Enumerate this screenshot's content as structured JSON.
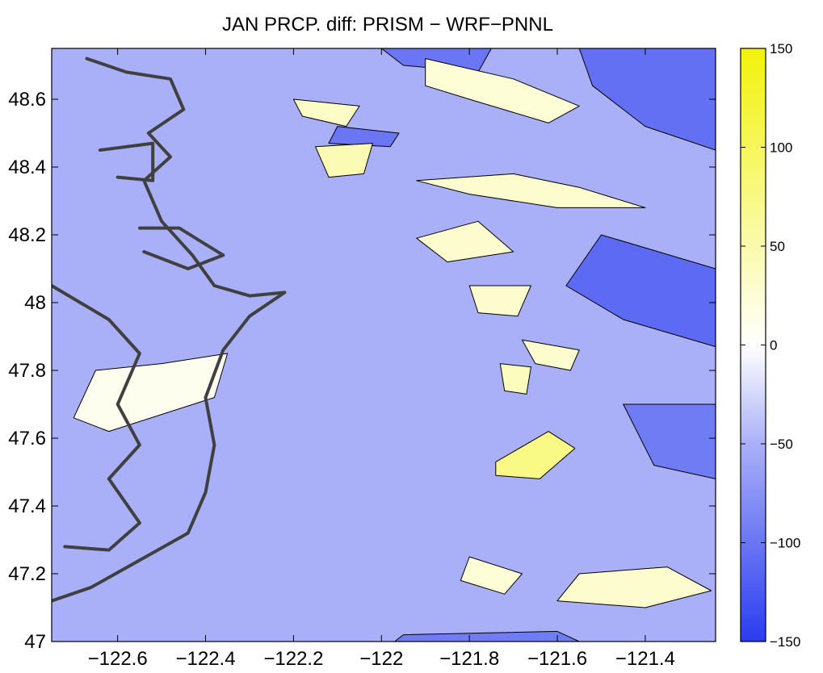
{
  "chart_data": {
    "type": "heatmap",
    "title": "JAN PRCP. diff: PRISM − WRF−PNNL",
    "xlabel": "",
    "ylabel": "",
    "xlim": [
      -122.75,
      -121.24
    ],
    "ylim": [
      47.0,
      48.75
    ],
    "xticks": [
      -122.6,
      -122.4,
      -122.2,
      -122.0,
      -121.8,
      -121.6,
      -121.4
    ],
    "xtick_labels": [
      "−122.6",
      "−122.4",
      "−122.2",
      "−122",
      "−121.8",
      "−121.6",
      "−121.4"
    ],
    "yticks": [
      47.0,
      47.2,
      47.4,
      47.6,
      47.8,
      48.0,
      48.2,
      48.4,
      48.6
    ],
    "ytick_labels": [
      "47",
      "47.2",
      "47.4",
      "47.6",
      "47.8",
      "48",
      "48.2",
      "48.4",
      "48.6"
    ],
    "colorbar": {
      "min": -150,
      "max": 150,
      "ticks": [
        150,
        100,
        50,
        0,
        -50,
        -100,
        -150
      ],
      "tick_labels": [
        "150",
        "100",
        "50",
        "0",
        "−50",
        "−100",
        "−150"
      ],
      "colors": {
        "-150": "#2a3cf0",
        "-50": "#aab0f8",
        "0": "#ffffff",
        "150": "#f2f20a"
      }
    },
    "contour_levels": [
      -125,
      -100,
      -75,
      -50,
      -25,
      0,
      25,
      50,
      75,
      100,
      125
    ],
    "regions": [
      {
        "value": -50,
        "polygon": [
          [
            -122.75,
            47.0
          ],
          [
            -121.24,
            47.0
          ],
          [
            -121.24,
            48.75
          ],
          [
            -122.75,
            48.75
          ]
        ]
      },
      {
        "value": -105,
        "polygon": [
          [
            -121.55,
            48.75
          ],
          [
            -121.24,
            48.75
          ],
          [
            -121.24,
            48.45
          ],
          [
            -121.4,
            48.52
          ],
          [
            -121.52,
            48.64
          ]
        ]
      },
      {
        "value": -110,
        "polygon": [
          [
            -121.5,
            48.2
          ],
          [
            -121.24,
            48.1
          ],
          [
            -121.24,
            47.87
          ],
          [
            -121.45,
            47.95
          ],
          [
            -121.58,
            48.05
          ]
        ]
      },
      {
        "value": -95,
        "polygon": [
          [
            -121.45,
            47.7
          ],
          [
            -121.24,
            47.7
          ],
          [
            -121.24,
            47.48
          ],
          [
            -121.38,
            47.52
          ]
        ]
      },
      {
        "value": -100,
        "polygon": [
          [
            -122.0,
            48.75
          ],
          [
            -121.75,
            48.75
          ],
          [
            -121.78,
            48.68
          ],
          [
            -121.95,
            48.7
          ]
        ]
      },
      {
        "value": -100,
        "polygon": [
          [
            -122.1,
            48.52
          ],
          [
            -121.96,
            48.5
          ],
          [
            -121.98,
            48.46
          ],
          [
            -122.12,
            48.47
          ]
        ]
      },
      {
        "value": -95,
        "polygon": [
          [
            -121.95,
            47.02
          ],
          [
            -121.6,
            47.03
          ],
          [
            -121.55,
            47.0
          ],
          [
            -121.97,
            47.0
          ]
        ]
      },
      {
        "value": 25,
        "polygon": [
          [
            -121.9,
            48.72
          ],
          [
            -121.7,
            48.66
          ],
          [
            -121.55,
            48.58
          ],
          [
            -121.62,
            48.53
          ],
          [
            -121.8,
            48.6
          ],
          [
            -121.9,
            48.64
          ]
        ]
      },
      {
        "value": 35,
        "polygon": [
          [
            -122.2,
            48.6
          ],
          [
            -122.05,
            48.58
          ],
          [
            -122.08,
            48.52
          ],
          [
            -122.18,
            48.55
          ]
        ]
      },
      {
        "value": 45,
        "polygon": [
          [
            -122.15,
            48.46
          ],
          [
            -122.02,
            48.47
          ],
          [
            -122.04,
            48.38
          ],
          [
            -122.12,
            48.37
          ]
        ]
      },
      {
        "value": 30,
        "polygon": [
          [
            -121.92,
            48.36
          ],
          [
            -121.7,
            48.38
          ],
          [
            -121.55,
            48.34
          ],
          [
            -121.4,
            48.28
          ],
          [
            -121.6,
            48.28
          ],
          [
            -121.8,
            48.32
          ]
        ]
      },
      {
        "value": 30,
        "polygon": [
          [
            -121.92,
            48.19
          ],
          [
            -121.78,
            48.24
          ],
          [
            -121.7,
            48.15
          ],
          [
            -121.85,
            48.12
          ]
        ]
      },
      {
        "value": 30,
        "polygon": [
          [
            -121.8,
            48.05
          ],
          [
            -121.66,
            48.05
          ],
          [
            -121.69,
            47.96
          ],
          [
            -121.78,
            47.97
          ]
        ]
      },
      {
        "value": 30,
        "polygon": [
          [
            -121.68,
            47.89
          ],
          [
            -121.55,
            47.86
          ],
          [
            -121.57,
            47.8
          ],
          [
            -121.65,
            47.82
          ]
        ]
      },
      {
        "value": 75,
        "polygon": [
          [
            -121.74,
            47.53
          ],
          [
            -121.62,
            47.62
          ],
          [
            -121.56,
            47.57
          ],
          [
            -121.64,
            47.48
          ],
          [
            -121.74,
            47.49
          ]
        ]
      },
      {
        "value": 40,
        "polygon": [
          [
            -121.73,
            47.82
          ],
          [
            -121.66,
            47.81
          ],
          [
            -121.67,
            47.73
          ],
          [
            -121.72,
            47.74
          ]
        ]
      },
      {
        "value": 25,
        "polygon": [
          [
            -121.8,
            47.25
          ],
          [
            -121.68,
            47.2
          ],
          [
            -121.72,
            47.14
          ],
          [
            -121.82,
            47.18
          ]
        ]
      },
      {
        "value": 30,
        "polygon": [
          [
            -121.55,
            47.2
          ],
          [
            -121.35,
            47.22
          ],
          [
            -121.25,
            47.15
          ],
          [
            -121.4,
            47.1
          ],
          [
            -121.6,
            47.12
          ]
        ]
      },
      {
        "value": 10,
        "polygon": [
          [
            -122.65,
            47.8
          ],
          [
            -122.5,
            47.82
          ],
          [
            -122.35,
            47.85
          ],
          [
            -122.38,
            47.72
          ],
          [
            -122.62,
            47.62
          ],
          [
            -122.7,
            47.66
          ]
        ]
      }
    ],
    "coastline_paths": [
      [
        [
          -122.67,
          48.72
        ],
        [
          -122.58,
          48.68
        ],
        [
          -122.48,
          48.66
        ],
        [
          -122.45,
          48.57
        ],
        [
          -122.53,
          48.5
        ],
        [
          -122.48,
          48.43
        ],
        [
          -122.54,
          48.36
        ],
        [
          -122.5,
          48.24
        ],
        [
          -122.43,
          48.14
        ],
        [
          -122.38,
          48.05
        ],
        [
          -122.3,
          48.02
        ],
        [
          -122.22,
          48.03
        ],
        [
          -122.3,
          47.96
        ],
        [
          -122.36,
          47.86
        ],
        [
          -122.4,
          47.72
        ],
        [
          -122.38,
          47.58
        ],
        [
          -122.4,
          47.44
        ],
        [
          -122.44,
          47.32
        ],
        [
          -122.55,
          47.24
        ],
        [
          -122.66,
          47.16
        ],
        [
          -122.75,
          47.12
        ]
      ],
      [
        [
          -122.75,
          48.05
        ],
        [
          -122.62,
          47.95
        ],
        [
          -122.55,
          47.85
        ],
        [
          -122.6,
          47.7
        ],
        [
          -122.55,
          47.58
        ],
        [
          -122.62,
          47.48
        ],
        [
          -122.55,
          47.35
        ],
        [
          -122.62,
          47.27
        ],
        [
          -122.72,
          47.28
        ]
      ],
      [
        [
          -122.64,
          48.45
        ],
        [
          -122.52,
          48.47
        ],
        [
          -122.52,
          48.36
        ],
        [
          -122.6,
          48.37
        ]
      ],
      [
        [
          -122.55,
          48.22
        ],
        [
          -122.46,
          48.22
        ],
        [
          -122.36,
          48.14
        ],
        [
          -122.44,
          48.1
        ],
        [
          -122.54,
          48.15
        ]
      ]
    ]
  }
}
